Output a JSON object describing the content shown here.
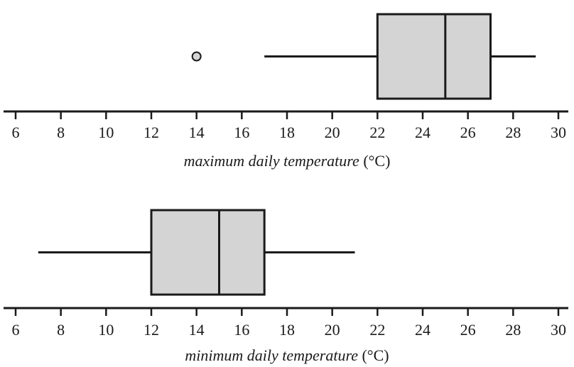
{
  "chart_data": [
    {
      "type": "boxplot",
      "xlim": [
        6,
        30
      ],
      "ticks": [
        6,
        8,
        10,
        12,
        14,
        16,
        18,
        20,
        22,
        24,
        26,
        28,
        30
      ],
      "xlabel_italic": "maximum daily temperature",
      "xlabel_unit": " (°C)",
      "min": 17,
      "q1": 22,
      "median": 25,
      "q3": 27,
      "max": 29,
      "outliers": [
        14
      ],
      "box_color": "#d4d4d4"
    },
    {
      "type": "boxplot",
      "xlim": [
        6,
        30
      ],
      "ticks": [
        6,
        8,
        10,
        12,
        14,
        16,
        18,
        20,
        22,
        24,
        26,
        28,
        30
      ],
      "xlabel_italic": "minimum daily temperature",
      "xlabel_unit": " (°C)",
      "min": 7,
      "q1": 12,
      "median": 15,
      "q3": 17,
      "max": 21,
      "outliers": [],
      "box_color": "#d4d4d4"
    }
  ]
}
